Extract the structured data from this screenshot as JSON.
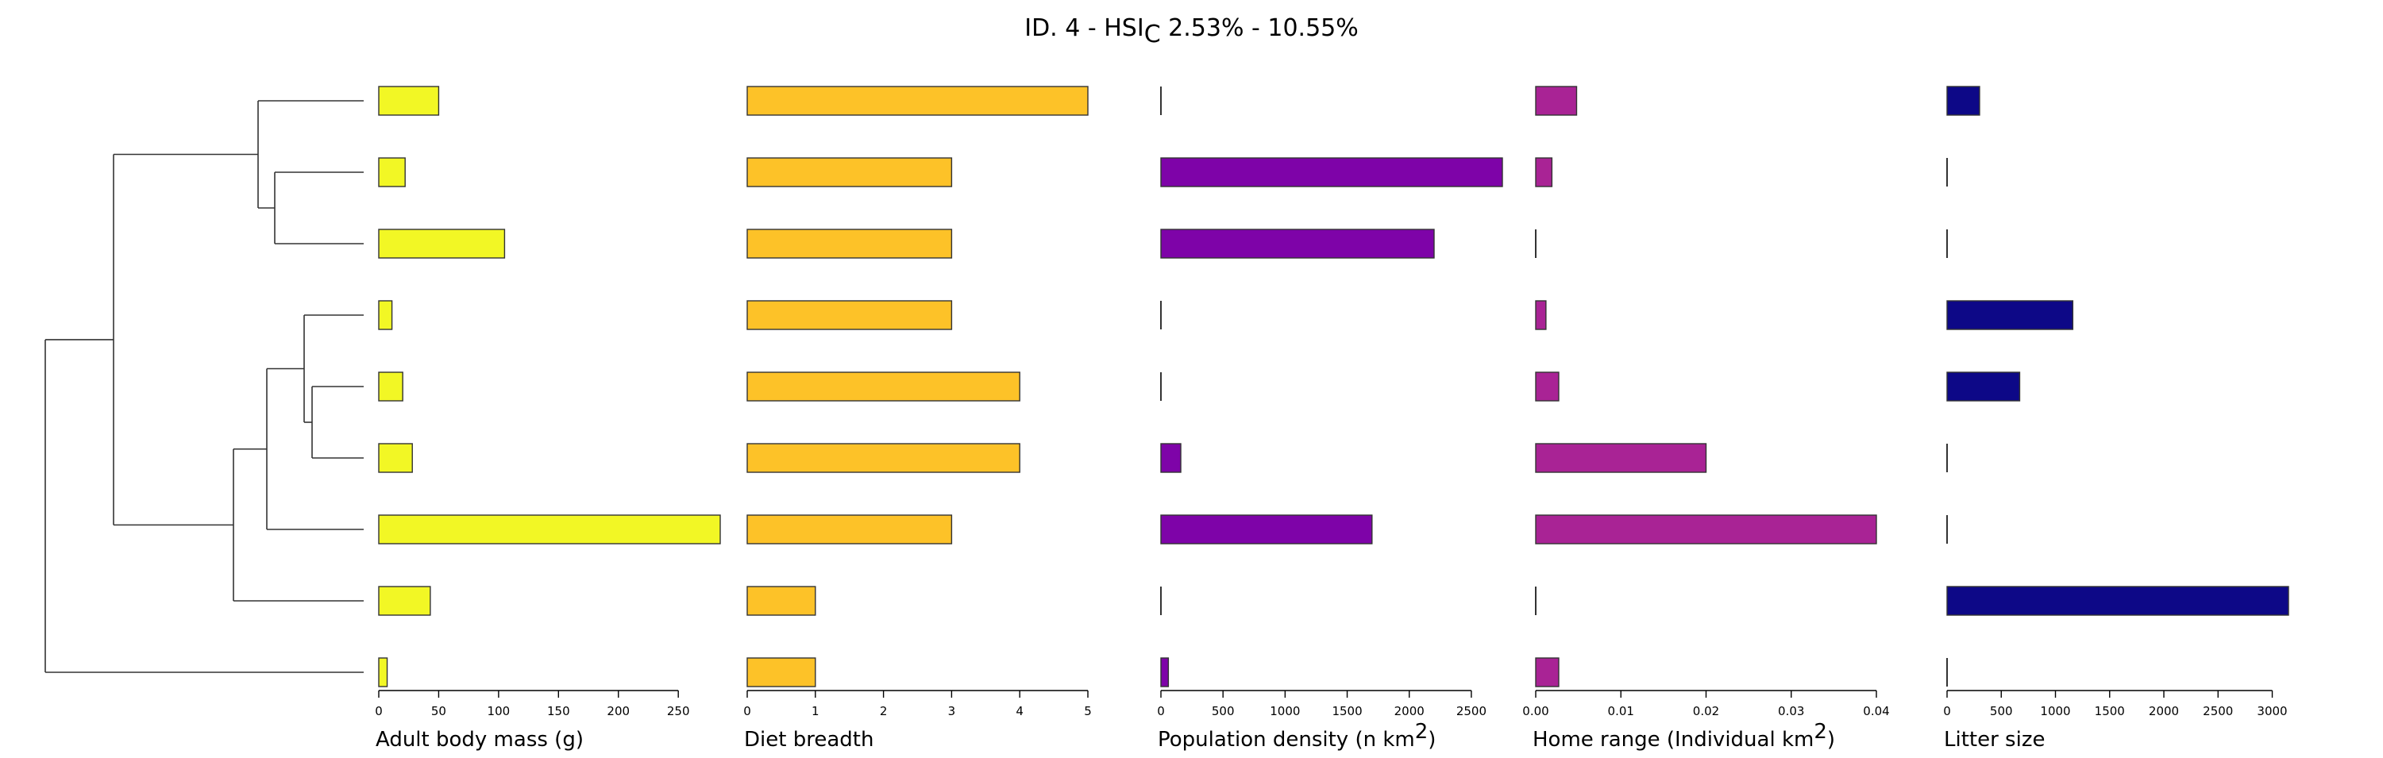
{
  "title": {
    "prefix": "ID. 4 - HSI",
    "subscript": "C",
    "suffix": " 2.53% - 10.55%"
  },
  "chart_data": {
    "type": "bar",
    "orientation": "horizontal",
    "n_species": 9,
    "tree": {
      "leaf_order": [
        0,
        1,
        2,
        3,
        4,
        5,
        6,
        7,
        8
      ],
      "merges": [
        [
          1,
          2
        ],
        [
          4,
          5
        ],
        [
          3,
          "4-5"
        ],
        [
          "3-4-5",
          6
        ],
        [
          "3-4-5-6",
          7
        ],
        [
          0,
          "1-2"
        ],
        [
          "0-1-2",
          "3-4-5-6-7"
        ],
        [
          "all-but-8",
          8
        ]
      ]
    },
    "panels": [
      {
        "key": "mass",
        "xlabel": "Adult body mass (g)",
        "xlim": [
          0,
          285
        ],
        "ticks": [
          0,
          50,
          100,
          150,
          200,
          250
        ],
        "tick_labels": [
          "0",
          "50",
          "100",
          "150",
          "200",
          "250"
        ],
        "color": "#F2F725",
        "values": [
          50,
          22,
          105,
          11,
          20,
          28,
          285,
          43,
          7
        ]
      },
      {
        "key": "diet",
        "xlabel": "Diet breadth",
        "xlim": [
          0,
          5
        ],
        "ticks": [
          0,
          1,
          2,
          3,
          4,
          5
        ],
        "tick_labels": [
          "0",
          "1",
          "2",
          "3",
          "4",
          "5"
        ],
        "color": "#FDC228",
        "values": [
          5,
          3,
          3,
          3,
          4,
          4,
          3,
          1,
          1
        ]
      },
      {
        "key": "density",
        "xlabel_main": "Population density (n km",
        "xlabel_sup": "2",
        "xlabel_end": ")",
        "xlim": [
          0,
          2750
        ],
        "ticks": [
          0,
          500,
          1000,
          1500,
          2000,
          2500
        ],
        "tick_labels": [
          "0",
          "500",
          "1000",
          "1500",
          "2000",
          "2500"
        ],
        "color": "#7E03A8",
        "values": [
          0,
          2750,
          2200,
          0,
          0,
          160,
          1700,
          0,
          60
        ]
      },
      {
        "key": "home",
        "xlabel_main": "Home range (Individual km",
        "xlabel_sup": "2",
        "xlabel_end": ")",
        "xlim": [
          0,
          0.04
        ],
        "ticks": [
          0,
          0.01,
          0.02,
          0.03,
          0.04
        ],
        "tick_labels": [
          "0.00",
          "0.01",
          "0.02",
          "0.03",
          "0.04"
        ],
        "color": "#A92395",
        "values": [
          0.0048,
          0.0019,
          0,
          0.0012,
          0.0027,
          0.02,
          0.04,
          0,
          0.0027
        ]
      },
      {
        "key": "litter",
        "xlabel": "Litter size",
        "xlim": [
          0,
          3150
        ],
        "ticks": [
          0,
          500,
          1000,
          1500,
          2000,
          2500,
          3000
        ],
        "tick_labels": [
          "0",
          "500",
          "1000",
          "1500",
          "2000",
          "2500",
          "3000"
        ],
        "color": "#0D0887",
        "values": [
          300,
          0,
          0,
          1160,
          670,
          0,
          0,
          3150,
          0
        ]
      }
    ]
  }
}
